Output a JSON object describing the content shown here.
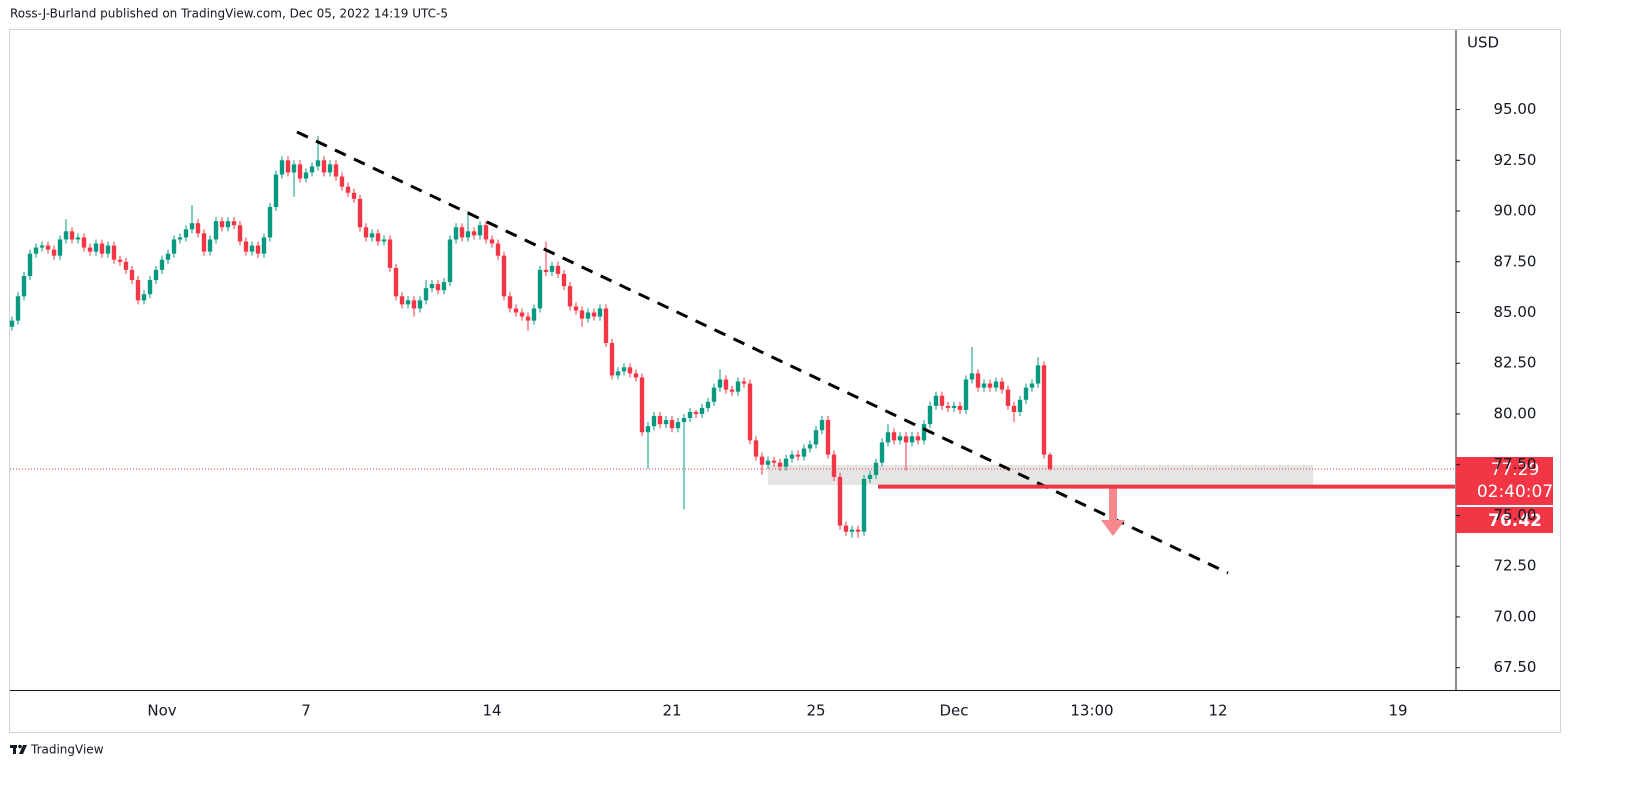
{
  "attribution": "Ross-J-Burland published on TradingView.com, Dec 05, 2022 14:19 UTC-5",
  "brand": "TradingView",
  "chart_data": {
    "type": "candlestick",
    "y_label": "USD",
    "up_color": "#089981",
    "down_color": "#f23645",
    "grid": false,
    "ylim": [
      66.4,
      98.92
    ],
    "yticks": [
      {
        "value": 67.5,
        "label": "67.50"
      },
      {
        "value": 70,
        "label": "70.00"
      },
      {
        "value": 72.5,
        "label": "72.50"
      },
      {
        "value": 75,
        "label": "75.00"
      },
      {
        "value": 77.5,
        "label": "77.50"
      },
      {
        "value": 80,
        "label": "80.00"
      },
      {
        "value": 82.5,
        "label": "82.50"
      },
      {
        "value": 85,
        "label": "85.00"
      },
      {
        "value": 87.5,
        "label": "87.50"
      },
      {
        "value": 90,
        "label": "90.00"
      },
      {
        "value": 92.5,
        "label": "92.50"
      },
      {
        "value": 95,
        "label": "95.00"
      }
    ],
    "last_price": 77.29,
    "countdown": "02:40:07",
    "level": 76.42,
    "categories": [
      null,
      null,
      null,
      null,
      null,
      null,
      null,
      null,
      null,
      null,
      null,
      null,
      null,
      null,
      null,
      null,
      null,
      null,
      null,
      null,
      null,
      null,
      null,
      null,
      null,
      "Nov",
      null,
      null,
      null,
      null,
      null,
      null,
      null,
      null,
      null,
      null,
      null,
      null,
      null,
      null,
      null,
      null,
      null,
      null,
      null,
      null,
      null,
      null,
      null,
      "7",
      null,
      null,
      null,
      null,
      null,
      null,
      null,
      null,
      null,
      null,
      null,
      null,
      null,
      null,
      null,
      null,
      null,
      null,
      null,
      null,
      null,
      null,
      null,
      null,
      null,
      null,
      null,
      null,
      null,
      null,
      "14",
      null,
      null,
      null,
      null,
      null,
      null,
      null,
      null,
      null,
      null,
      null,
      null,
      null,
      null,
      null,
      null,
      null,
      null,
      null,
      null,
      null,
      null,
      null,
      null,
      null,
      null,
      null,
      null,
      null,
      "21",
      null,
      null,
      null,
      null,
      null,
      null,
      null,
      null,
      null,
      null,
      null,
      null,
      null,
      null,
      null,
      null,
      null,
      null,
      null,
      null,
      null,
      null,
      null,
      "25",
      null,
      null,
      null,
      null,
      null,
      null,
      null,
      null,
      null,
      null,
      null,
      null,
      null,
      null,
      null,
      null,
      null,
      null,
      null,
      null,
      null,
      null,
      "Dec",
      null,
      null,
      null,
      null,
      null,
      null,
      null,
      null,
      null,
      null,
      null,
      null,
      null,
      null,
      null,
      null,
      null,
      null,
      null,
      null,
      null,
      null,
      "13:00",
      null,
      null,
      null,
      null,
      null,
      null,
      null,
      null,
      null,
      null,
      null,
      null,
      null,
      null,
      null,
      null,
      null,
      null,
      null,
      null,
      "12",
      null,
      null,
      null,
      null,
      null,
      null,
      null,
      null,
      null,
      null,
      null,
      null,
      null,
      null,
      null,
      null,
      null,
      null,
      null,
      null,
      null,
      null,
      null,
      null,
      null,
      null,
      null,
      null,
      null,
      "19",
      null,
      null,
      null,
      null,
      null,
      null,
      null,
      null,
      null
    ],
    "open": [
      84.3,
      84.6,
      85.8,
      86.8,
      87.9,
      88.2,
      88.3,
      88.1,
      87.8,
      88.6,
      89.0,
      88.6,
      88.7,
      88.2,
      88.0,
      88.4,
      87.9,
      88.3,
      87.6,
      87.5,
      87.1,
      86.6,
      85.6,
      85.9,
      86.6,
      87.1,
      87.6,
      87.9,
      88.6,
      88.7,
      89.1,
      89.4,
      88.9,
      88.0,
      88.6,
      89.5,
      89.2,
      89.5,
      89.3,
      88.5,
      88.0,
      88.3,
      87.9,
      88.7,
      90.2,
      91.8,
      92.5,
      91.9,
      92.3,
      91.6,
      91.9,
      92.2,
      92.5,
      91.9,
      92.3,
      91.7,
      91.2,
      90.9,
      90.6,
      89.2,
      88.7,
      88.9,
      88.5,
      88.6,
      87.2,
      85.8,
      85.4,
      85.6,
      85.2,
      85.6,
      86.2,
      86.4,
      86.1,
      86.5,
      88.6,
      89.2,
      88.7,
      89.0,
      88.8,
      89.3,
      88.6,
      88.4,
      87.8,
      85.8,
      85.2,
      85.0,
      84.8,
      84.6,
      85.2,
      87.1,
      87.0,
      87.3,
      86.9,
      86.3,
      85.3,
      85.1,
      84.7,
      85.0,
      84.8,
      85.2,
      83.5,
      81.9,
      82.1,
      82.3,
      82.0,
      81.8,
      79.1,
      79.4,
      79.9,
      79.5,
      79.7,
      79.3,
      79.6,
      79.8,
      80.1,
      80.0,
      80.3,
      80.6,
      81.3,
      81.7,
      81.2,
      81.1,
      81.6,
      81.5,
      78.7,
      77.9,
      77.5,
      77.7,
      77.6,
      77.4,
      77.8,
      78.0,
      77.9,
      78.3,
      78.5,
      79.2,
      79.7,
      78.0,
      76.9,
      74.5,
      74.2,
      74.3,
      74.2,
      76.8,
      77.0,
      77.6,
      78.6,
      79.1,
      78.7,
      78.9,
      78.6,
      78.9,
      78.7,
      79.5,
      80.4,
      80.9,
      80.4,
      80.3,
      80.4,
      80.2,
      81.7,
      82.0,
      81.3,
      81.5,
      81.3,
      81.6,
      81.2,
      80.4,
      80.1,
      80.7,
      81.3,
      81.5,
      82.4,
      78.0,
      null,
      null,
      null,
      null,
      null,
      null,
      null,
      null,
      null,
      null,
      null,
      null,
      null,
      null,
      null,
      null,
      null,
      null,
      null,
      null,
      null,
      null,
      null,
      null,
      null,
      null,
      null,
      null,
      null,
      null,
      null,
      null,
      null,
      null,
      null,
      null,
      null,
      null,
      null,
      null,
      null,
      null,
      null,
      null,
      null,
      null,
      null,
      null,
      null,
      null,
      null,
      null,
      null,
      null,
      null,
      null,
      null,
      null,
      null,
      null,
      null,
      null,
      null,
      null,
      null,
      null,
      null
    ],
    "high": [
      84.8,
      86.0,
      87.0,
      88.1,
      88.4,
      88.5,
      88.5,
      88.3,
      88.8,
      89.6,
      89.2,
      88.9,
      88.9,
      88.4,
      88.6,
      88.6,
      88.5,
      88.5,
      87.8,
      87.7,
      87.3,
      86.8,
      86.1,
      86.8,
      87.3,
      87.8,
      88.1,
      88.8,
      88.9,
      89.3,
      90.3,
      89.6,
      89.1,
      88.8,
      89.7,
      89.7,
      89.7,
      89.7,
      89.5,
      88.7,
      88.5,
      88.5,
      88.9,
      90.4,
      92.0,
      92.7,
      92.7,
      92.5,
      92.5,
      92.1,
      92.4,
      93.7,
      92.7,
      92.5,
      92.5,
      91.9,
      91.4,
      91.1,
      90.8,
      89.4,
      89.1,
      89.1,
      88.8,
      88.8,
      87.4,
      86.0,
      85.8,
      85.8,
      85.8,
      86.6,
      86.6,
      86.6,
      86.7,
      88.8,
      89.4,
      89.4,
      90.0,
      89.2,
      89.5,
      89.5,
      88.8,
      88.6,
      88.0,
      86.0,
      85.4,
      85.2,
      85.0,
      85.4,
      87.3,
      88.5,
      87.5,
      87.5,
      87.1,
      86.5,
      85.5,
      85.3,
      85.2,
      85.2,
      85.4,
      85.4,
      83.7,
      82.3,
      82.5,
      82.5,
      82.2,
      82.0,
      79.6,
      80.1,
      80.1,
      79.9,
      79.9,
      79.8,
      80.0,
      80.3,
      80.2,
      80.5,
      80.8,
      81.5,
      82.2,
      81.9,
      81.4,
      81.8,
      81.8,
      81.7,
      78.9,
      78.1,
      77.9,
      77.9,
      77.8,
      78.0,
      78.2,
      78.2,
      78.5,
      78.7,
      79.4,
      79.9,
      79.9,
      78.2,
      77.1,
      74.7,
      74.5,
      74.5,
      77.0,
      77.2,
      77.8,
      78.8,
      79.5,
      79.3,
      79.1,
      79.1,
      79.1,
      79.1,
      79.7,
      80.6,
      81.1,
      81.1,
      80.6,
      80.6,
      80.6,
      81.9,
      83.3,
      82.2,
      81.7,
      81.7,
      81.8,
      81.8,
      81.4,
      80.6,
      80.9,
      81.5,
      81.7,
      82.8,
      82.6,
      78.1,
      null,
      null,
      null,
      null,
      null,
      null,
      null,
      null,
      null,
      null,
      null,
      null,
      null,
      null,
      null,
      null,
      null,
      null,
      null,
      null,
      null,
      null,
      null,
      null,
      null,
      null,
      null,
      null,
      null,
      null,
      null,
      null,
      null,
      null,
      null,
      null,
      null,
      null,
      null,
      null,
      null,
      null,
      null,
      null,
      null,
      null,
      null,
      null,
      null,
      null,
      null,
      null,
      null,
      null,
      null,
      null,
      null,
      null,
      null,
      null,
      null,
      null,
      null,
      null,
      null,
      null,
      null
    ],
    "low": [
      84.1,
      84.4,
      85.6,
      86.6,
      87.7,
      88.0,
      87.9,
      87.6,
      87.6,
      88.4,
      88.4,
      88.4,
      88.0,
      87.8,
      87.8,
      87.7,
      87.7,
      87.4,
      87.3,
      86.9,
      86.4,
      85.4,
      85.4,
      85.7,
      86.4,
      86.9,
      87.4,
      87.7,
      88.4,
      88.5,
      88.9,
      88.7,
      87.8,
      87.8,
      88.4,
      89.0,
      89.0,
      89.1,
      88.3,
      87.8,
      87.8,
      87.7,
      87.7,
      88.5,
      90.0,
      91.6,
      91.7,
      90.7,
      91.4,
      91.4,
      91.7,
      92.0,
      91.7,
      91.7,
      91.5,
      91.0,
      90.7,
      90.4,
      89.0,
      88.5,
      88.5,
      88.3,
      88.3,
      87.0,
      85.6,
      85.2,
      85.2,
      84.8,
      85.0,
      85.4,
      86.0,
      85.9,
      85.9,
      86.3,
      88.4,
      88.5,
      88.5,
      88.6,
      88.6,
      88.4,
      88.2,
      87.6,
      85.6,
      85.0,
      84.8,
      84.6,
      84.1,
      84.4,
      85.0,
      86.8,
      86.8,
      86.7,
      86.1,
      85.1,
      84.9,
      84.3,
      84.5,
      84.6,
      84.6,
      83.3,
      81.7,
      81.7,
      81.9,
      81.8,
      81.6,
      78.9,
      77.3,
      79.2,
      79.3,
      79.3,
      79.1,
      79.1,
      75.3,
      79.6,
      79.8,
      79.8,
      80.1,
      80.4,
      81.1,
      81.0,
      80.9,
      80.9,
      81.3,
      78.5,
      77.7,
      77.0,
      77.3,
      77.4,
      77.2,
      77.2,
      77.6,
      77.7,
      77.7,
      78.1,
      78.3,
      79.0,
      77.8,
      76.7,
      74.3,
      74.0,
      73.9,
      73.9,
      74.0,
      76.6,
      76.8,
      77.4,
      78.4,
      78.5,
      78.5,
      77.2,
      78.4,
      78.5,
      78.5,
      79.3,
      80.2,
      80.2,
      80.1,
      80.1,
      80.0,
      80.0,
      81.5,
      81.1,
      81.1,
      81.1,
      81.1,
      81.0,
      80.2,
      79.6,
      79.9,
      80.5,
      81.1,
      81.3,
      77.8,
      77.2,
      null,
      null,
      null,
      null,
      null,
      null,
      null,
      null,
      null,
      null,
      null,
      null,
      null,
      null,
      null,
      null,
      null,
      null,
      null,
      null,
      null,
      null,
      null,
      null,
      null,
      null,
      null,
      null,
      null,
      null,
      null,
      null,
      null,
      null,
      null,
      null,
      null,
      null,
      null,
      null,
      null,
      null,
      null,
      null,
      null,
      null,
      null,
      null,
      null,
      null,
      null,
      null,
      null,
      null,
      null,
      null,
      null,
      null,
      null,
      null,
      null,
      null,
      null,
      null,
      null,
      null,
      null
    ],
    "close": [
      84.6,
      85.8,
      86.8,
      87.9,
      88.2,
      88.3,
      88.1,
      87.8,
      88.6,
      89.0,
      88.6,
      88.7,
      88.2,
      88.0,
      88.4,
      87.9,
      88.3,
      87.6,
      87.5,
      87.1,
      86.6,
      85.6,
      85.9,
      86.6,
      87.1,
      87.6,
      87.9,
      88.6,
      88.7,
      89.1,
      89.4,
      88.9,
      88.0,
      88.6,
      89.5,
      89.2,
      89.5,
      89.3,
      88.5,
      88.0,
      88.3,
      87.9,
      88.7,
      90.2,
      91.8,
      92.5,
      91.9,
      92.3,
      91.6,
      91.9,
      92.2,
      92.5,
      91.9,
      92.3,
      91.7,
      91.2,
      90.9,
      90.6,
      89.2,
      88.7,
      88.9,
      88.5,
      88.6,
      87.2,
      85.8,
      85.4,
      85.6,
      85.2,
      85.6,
      86.2,
      86.4,
      86.1,
      86.5,
      88.6,
      89.2,
      88.7,
      89.0,
      88.8,
      89.3,
      88.6,
      88.4,
      87.8,
      85.8,
      85.2,
      85.0,
      84.8,
      84.6,
      85.2,
      87.1,
      87.0,
      87.3,
      86.9,
      86.3,
      85.3,
      85.1,
      84.7,
      85.0,
      84.8,
      85.2,
      83.5,
      81.9,
      82.1,
      82.3,
      82.0,
      81.8,
      79.1,
      79.4,
      79.9,
      79.5,
      79.7,
      79.3,
      79.6,
      79.8,
      80.1,
      80.0,
      80.3,
      80.6,
      81.3,
      81.7,
      81.2,
      81.1,
      81.6,
      81.5,
      78.7,
      77.9,
      77.5,
      77.7,
      77.6,
      77.4,
      77.8,
      78.0,
      77.9,
      78.3,
      78.5,
      79.2,
      79.7,
      78.0,
      76.9,
      74.5,
      74.2,
      74.3,
      74.2,
      76.8,
      77.0,
      77.6,
      78.6,
      79.1,
      78.7,
      78.9,
      78.6,
      78.9,
      78.7,
      79.5,
      80.4,
      80.9,
      80.4,
      80.3,
      80.4,
      80.2,
      81.7,
      82.0,
      81.3,
      81.5,
      81.3,
      81.6,
      81.2,
      80.4,
      80.1,
      80.7,
      81.3,
      81.5,
      82.4,
      78.0,
      77.29,
      null,
      null,
      null,
      null,
      null,
      null,
      null,
      null,
      null,
      null,
      null,
      null,
      null,
      null,
      null,
      null,
      null,
      null,
      null,
      null,
      null,
      null,
      null,
      null,
      null,
      null,
      null,
      null,
      null,
      null,
      null,
      null,
      null,
      null,
      null,
      null,
      null,
      null,
      null,
      null,
      null,
      null,
      null,
      null,
      null,
      null,
      null,
      null,
      null,
      null,
      null,
      null,
      null,
      null,
      null,
      null,
      null,
      null,
      null,
      null,
      null,
      null,
      null,
      null,
      null,
      null,
      null
    ]
  }
}
